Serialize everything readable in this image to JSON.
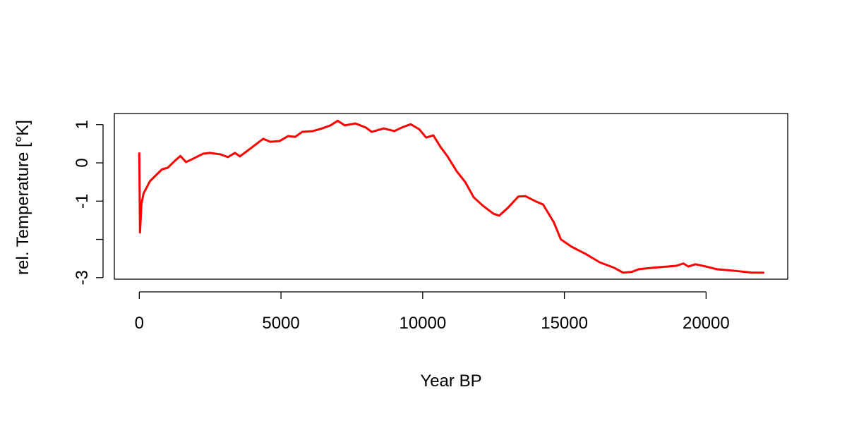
{
  "chart_data": {
    "type": "line",
    "xlabel": "Year BP",
    "ylabel": "rel. Temperature [°K]",
    "x": [
      0,
      0,
      25,
      75,
      150,
      375,
      550,
      800,
      1000,
      1250,
      1450,
      1650,
      1900,
      2250,
      2500,
      2875,
      3125,
      3375,
      3550,
      3875,
      4375,
      4625,
      4950,
      5250,
      5500,
      5750,
      6125,
      6450,
      6750,
      7000,
      7250,
      7625,
      8000,
      8200,
      8625,
      9000,
      9250,
      9575,
      9875,
      10125,
      10375,
      10625,
      10875,
      11200,
      11500,
      11800,
      12125,
      12500,
      12700,
      13000,
      13375,
      13625,
      14000,
      14250,
      14625,
      14875,
      15250,
      15750,
      16250,
      16750,
      17075,
      17375,
      17625,
      18125,
      18625,
      18950,
      19200,
      19375,
      19625,
      20000,
      20375,
      21000,
      21625,
      22050
    ],
    "series": [
      {
        "color": "#ff0000",
        "values": [
          0,
          0.25,
          -1.82,
          -1.08,
          -0.8,
          -0.48,
          -0.35,
          -0.17,
          -0.13,
          0.05,
          0.18,
          0.02,
          0.11,
          0.24,
          0.26,
          0.22,
          0.15,
          0.26,
          0.17,
          0.35,
          0.63,
          0.55,
          0.57,
          0.7,
          0.68,
          0.81,
          0.83,
          0.9,
          0.98,
          1.1,
          0.98,
          1.03,
          0.92,
          0.81,
          0.9,
          0.83,
          0.92,
          1.01,
          0.88,
          0.66,
          0.72,
          0.42,
          0.17,
          -0.22,
          -0.5,
          -0.9,
          -1.12,
          -1.33,
          -1.38,
          -1.18,
          -0.88,
          -0.87,
          -1.01,
          -1.09,
          -1.55,
          -2.0,
          -2.19,
          -2.38,
          -2.6,
          -2.74,
          -2.87,
          -2.85,
          -2.78,
          -2.74,
          -2.71,
          -2.69,
          -2.63,
          -2.71,
          -2.65,
          -2.71,
          -2.78,
          -2.82,
          -2.87,
          -2.87
        ]
      }
    ],
    "xlim": [
      -880,
      22880
    ],
    "ylim": [
      -3.04,
      1.29
    ],
    "xticks": [
      0,
      5000,
      10000,
      15000,
      20000
    ],
    "yticks": [
      -3,
      {
        "value": -2,
        "label": null
      },
      -1,
      0,
      1
    ]
  }
}
